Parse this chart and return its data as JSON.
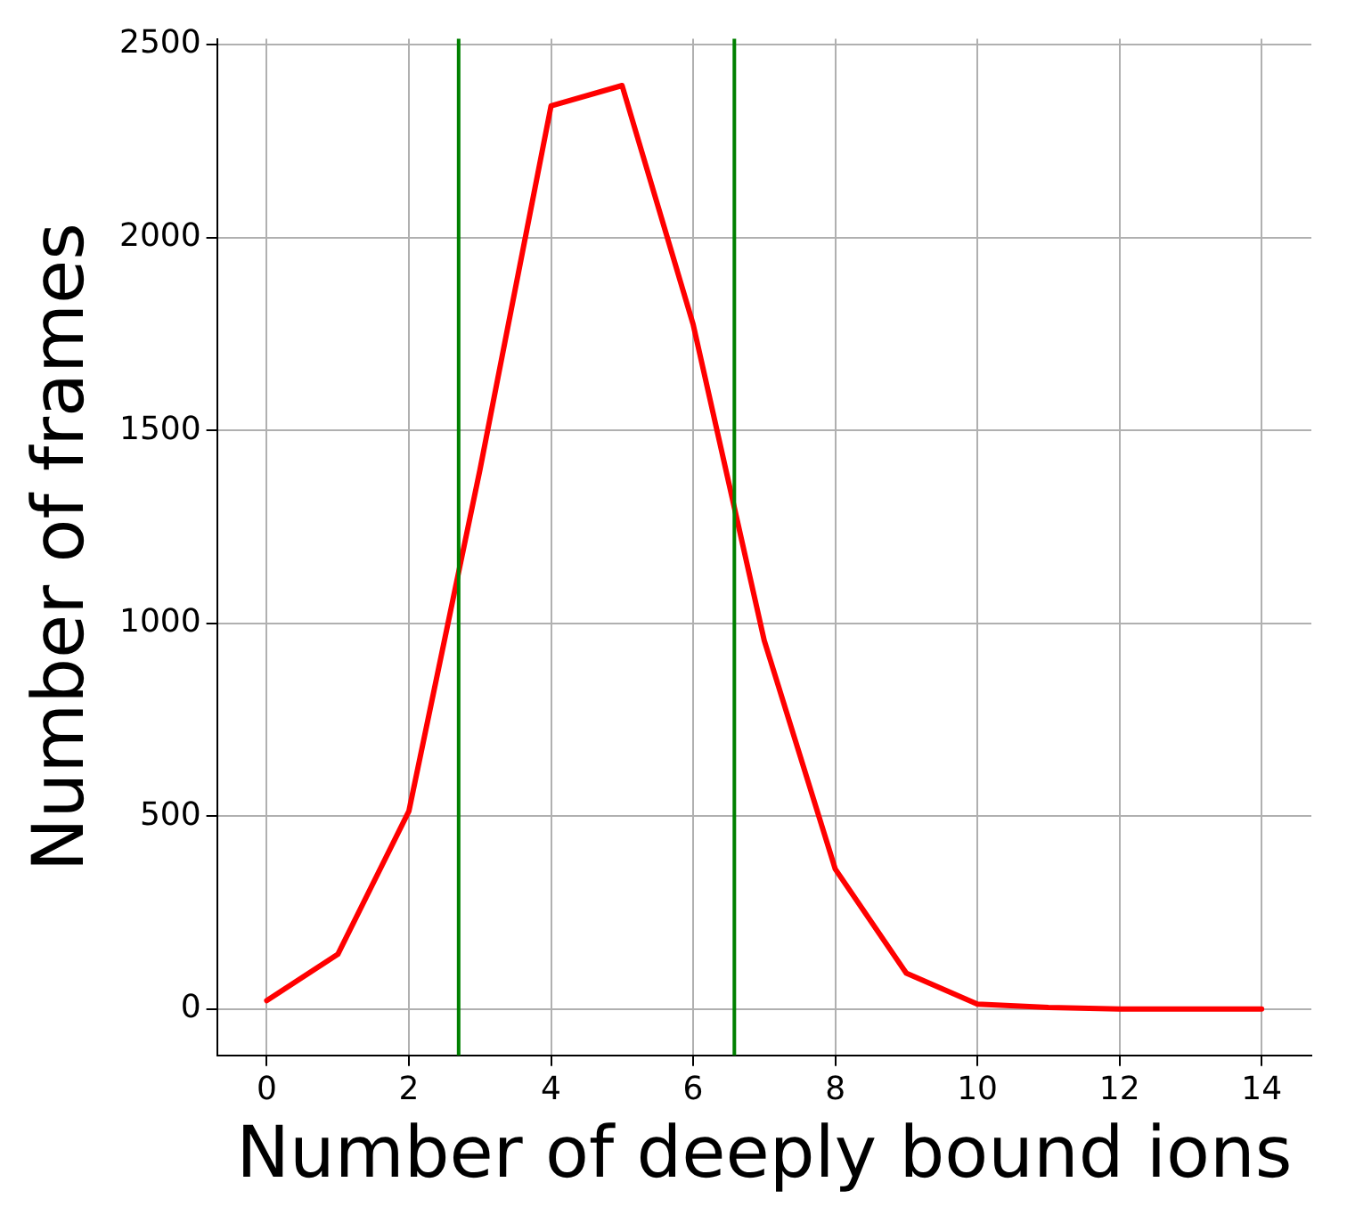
{
  "chart_data": {
    "type": "line",
    "xlabel": "Number of deeply bound ions",
    "ylabel": "Number of frames",
    "x": [
      0,
      1,
      2,
      3,
      4,
      5,
      6,
      7,
      8,
      9,
      10,
      11,
      12,
      13,
      14
    ],
    "series": [
      {
        "color": "#ff0000",
        "values": [
          22,
          142,
          513,
          1398,
          2341,
          2394,
          1775,
          956,
          363,
          93,
          13,
          4,
          0,
          0,
          0
        ]
      }
    ],
    "xlim": [
      -0.7,
      14.7
    ],
    "ylim": [
      -120,
      2515
    ],
    "xticks": [
      0,
      2,
      4,
      6,
      8,
      10,
      12,
      14
    ],
    "yticks": [
      0,
      500,
      1000,
      1500,
      2000,
      2500
    ],
    "ref_lines": [
      {
        "axis": "x",
        "value": 2.7,
        "color": "#008000"
      },
      {
        "axis": "x",
        "value": 6.58,
        "color": "#008000"
      }
    ],
    "grid": true,
    "marker": "none",
    "line_style": "solid",
    "legend": false
  }
}
